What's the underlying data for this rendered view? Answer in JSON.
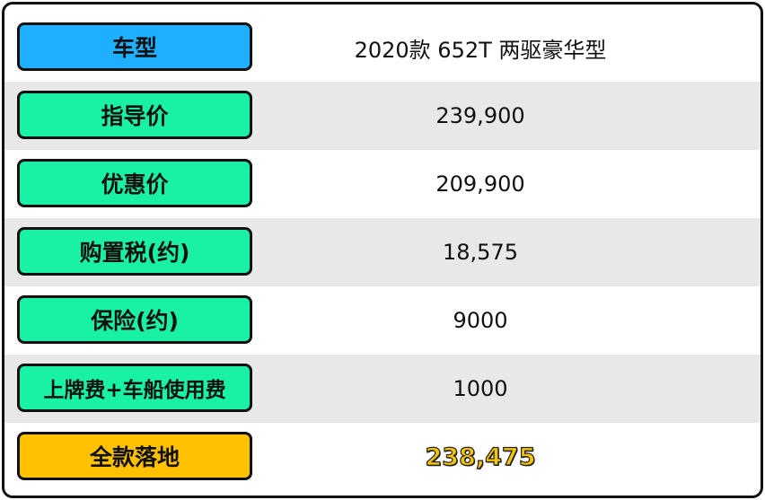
{
  "rows": [
    {
      "label": "车型",
      "value": "2020款 652T 两驱豪华型",
      "color": "#1eb0ff"
    },
    {
      "label": "指导价",
      "value": "239,900",
      "color": "#19f2a5"
    },
    {
      "label": "优惠价",
      "value": "209,900",
      "color": "#19f2a5"
    },
    {
      "label": "购置税(约)",
      "value": "18,575",
      "color": "#19f2a5"
    },
    {
      "label": "保险(约)",
      "value": "9000",
      "color": "#19f2a5"
    },
    {
      "label": "上牌费+车船使用费",
      "value": "1000",
      "color": "#19f2a5"
    },
    {
      "label": "全款落地",
      "value": "238,475",
      "color": "#ffc100"
    }
  ]
}
